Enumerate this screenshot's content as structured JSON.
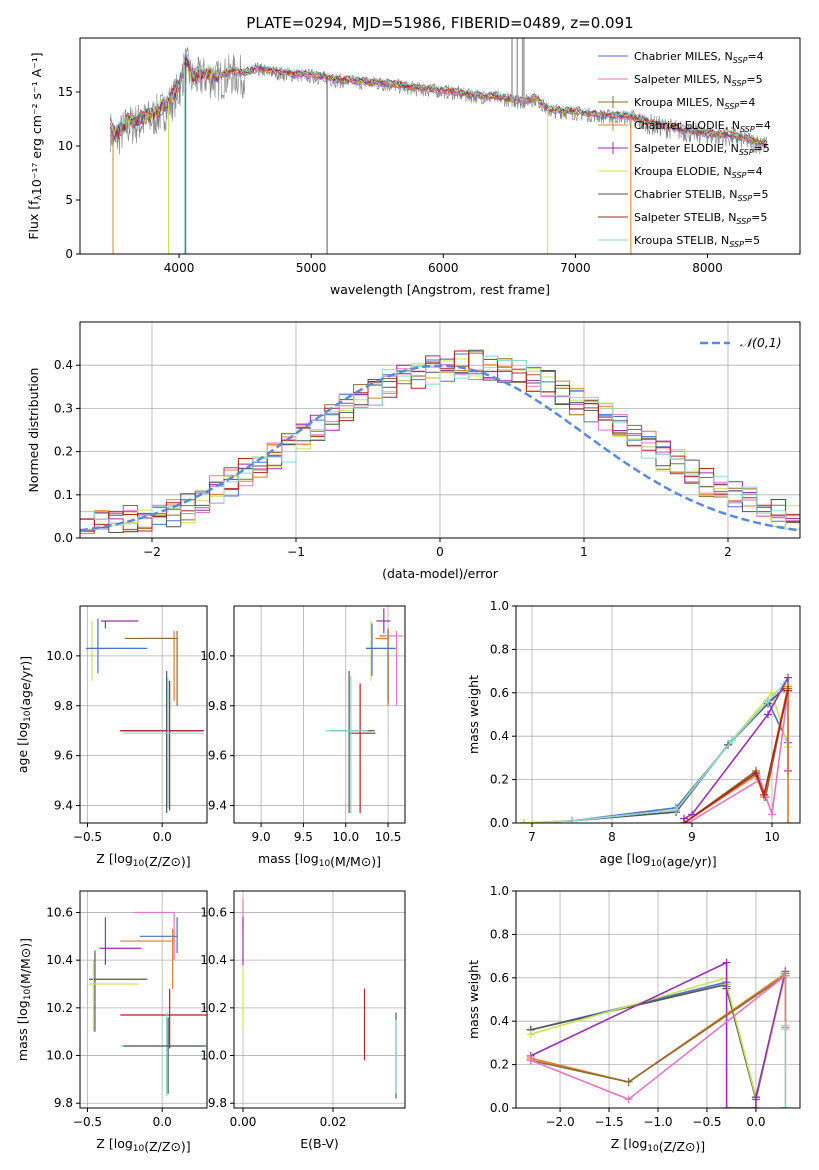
{
  "title": "PLATE=0294, MJD=51986, FIBERID=0489, z=0.091",
  "colors": {
    "series": [
      "#4c72c8",
      "#e377c2",
      "#8c6d31",
      "#dd7e2b",
      "#9a2fb3",
      "#c7e35a",
      "#555555",
      "#b22222",
      "#8fd3d6"
    ],
    "gauss": "#5a8bd6",
    "grid": "#b0b0b0"
  },
  "chart_data": [
    {
      "id": "spectrum",
      "type": "line",
      "xlabel": "wavelength [Angstrom, rest frame]",
      "ylabel": "Flux [fλ10⁻¹⁷ erg cm⁻² s⁻¹ A⁻¹]",
      "xlim": [
        3250,
        8700
      ],
      "ylim": [
        0,
        20
      ],
      "xticks": [
        4000,
        5000,
        6000,
        7000,
        8000
      ],
      "yticks": [
        0,
        5,
        10,
        15
      ],
      "grid": false,
      "legend_position": "top-right",
      "legend": [
        "Chabrier MILES, N_SSP=4",
        "Salpeter MILES, N_SSP=5",
        "Kroupa MILES, N_SSP=4",
        "Chabrier ELODIE, N_SSP=4",
        "Salpeter ELODIE, N_SSP=5",
        "Kroupa ELODIE, N_SSP=4",
        "Chabrier STELIB, N_SSP=5",
        "Salpeter STELIB, N_SSP=5",
        "Kroupa STELIB, N_SSP=5"
      ],
      "data_envelope": {
        "x": [
          3480,
          3520,
          3600,
          3700,
          3800,
          3900,
          4000,
          4050,
          4100,
          4200,
          4300,
          4400,
          4500,
          4600,
          4800,
          5000,
          5200,
          5400,
          5600,
          5800,
          6000,
          6200,
          6400,
          6600,
          6700,
          6800,
          7000,
          7200,
          7400,
          7600,
          7800,
          8000,
          8200,
          8450
        ],
        "y": [
          11.8,
          11.0,
          12.2,
          12.5,
          13.0,
          13.8,
          15.5,
          18.0,
          16.5,
          16.8,
          16.5,
          17.0,
          16.8,
          17.2,
          16.8,
          16.6,
          16.2,
          16.0,
          15.8,
          15.4,
          15.2,
          14.8,
          14.6,
          14.2,
          14.5,
          13.4,
          13.2,
          12.9,
          12.8,
          12.1,
          11.6,
          11.2,
          11.0,
          10.2
        ]
      },
      "model_dips": [
        {
          "x": 3500,
          "y": 0.0,
          "label": ""
        },
        {
          "x": 3920,
          "y": 0.0
        },
        {
          "x": 4040,
          "y": 0.0
        },
        {
          "x": 4040,
          "y": 3.5
        },
        {
          "x": 6790,
          "y": 0.0
        },
        {
          "x": 7420,
          "y": 0.0
        }
      ]
    },
    {
      "id": "residuals",
      "type": "histogram",
      "xlabel": "(data-model)/error",
      "ylabel": "Normed distribution",
      "xlim": [
        -2.5,
        2.5
      ],
      "ylim": [
        0,
        0.5
      ],
      "xticks": [
        -2,
        -1,
        0,
        1,
        2
      ],
      "yticks": [
        0.0,
        0.1,
        0.2,
        0.3,
        0.4
      ],
      "grid": true,
      "legend_position": "top-right",
      "legend": [
        "𝒩(0,1)"
      ],
      "bin_width": 0.1,
      "bins_start": -2.5,
      "profile": [
        0.03,
        0.035,
        0.04,
        0.045,
        0.05,
        0.055,
        0.06,
        0.07,
        0.09,
        0.11,
        0.13,
        0.15,
        0.17,
        0.19,
        0.21,
        0.235,
        0.26,
        0.28,
        0.3,
        0.32,
        0.34,
        0.355,
        0.37,
        0.38,
        0.39,
        0.395,
        0.4,
        0.4,
        0.395,
        0.39,
        0.38,
        0.37,
        0.355,
        0.34,
        0.32,
        0.3,
        0.28,
        0.26,
        0.24,
        0.215,
        0.19,
        0.17,
        0.15,
        0.13,
        0.115,
        0.1,
        0.085,
        0.07,
        0.06,
        0.05
      ]
    },
    {
      "id": "age-vs-Z",
      "type": "errorbar",
      "xlabel": "Z [log10(Z/Z⊙)]",
      "ylabel": "age  [log10(age/yr)]",
      "xlim": [
        -0.55,
        0.3
      ],
      "ylim": [
        9.33,
        10.2
      ],
      "xticks": [
        -0.5,
        0.0
      ],
      "yticks": [
        9.4,
        9.6,
        9.8,
        10.0
      ],
      "grid": true,
      "points": [
        {
          "x": 0.08,
          "y": 10.07,
          "xl": 0.22,
          "xr": 0.0,
          "yl": 0.25,
          "yh": 0.03,
          "c": 3
        },
        {
          "x": 0.1,
          "y": 10.07,
          "xl": 0.35,
          "xr": 0.0,
          "yl": 0.27,
          "yh": 0.03,
          "c": 2
        },
        {
          "x": -0.47,
          "y": 10.03,
          "xl": 0.04,
          "xr": 0.3,
          "yl": 0.13,
          "yh": 0.11,
          "c": 5
        },
        {
          "x": -0.43,
          "y": 10.03,
          "xl": 0.08,
          "xr": 0.33,
          "yl": 0.1,
          "yh": 0.12,
          "c": 0
        },
        {
          "x": -0.38,
          "y": 10.14,
          "xl": 0.03,
          "xr": 0.22,
          "yl": 0.03,
          "yh": 0.0,
          "c": 4
        },
        {
          "x": 0.03,
          "y": 9.7,
          "xl": 0.31,
          "xr": 0.25,
          "yl": 0.33,
          "yh": 0.24,
          "c": 6
        },
        {
          "x": 0.05,
          "y": 9.7,
          "xl": 0.33,
          "xr": 0.22,
          "yl": 0.32,
          "yh": 0.2,
          "c": 7
        },
        {
          "x": 0.04,
          "y": 9.69,
          "xl": 0.3,
          "xr": 0.24,
          "yl": 0.3,
          "yh": 0.22,
          "c": 8
        }
      ]
    },
    {
      "id": "age-vs-mass",
      "type": "errorbar",
      "xlabel": "mass [log10(M/M⊙)]",
      "ylabel": "",
      "xlim": [
        8.68,
        10.7
      ],
      "ylim": [
        9.33,
        10.2
      ],
      "xticks": [
        9.0,
        9.5,
        10.0,
        10.5
      ],
      "yticks": [
        9.4,
        9.6,
        9.8,
        10.0
      ],
      "grid": true,
      "points": [
        {
          "x": 10.5,
          "y": 10.07,
          "xl": 0.15,
          "xr": 0.0,
          "yl": 0.27,
          "yh": 0.03,
          "c": 3
        },
        {
          "x": 10.5,
          "y": 10.08,
          "xl": 0.1,
          "xr": 0.1,
          "yl": 0.27,
          "yh": 0.03,
          "c": 2
        },
        {
          "x": 10.6,
          "y": 10.08,
          "xl": 0.14,
          "xr": 0.08,
          "yl": 0.28,
          "yh": 0.02,
          "c": 1
        },
        {
          "x": 10.3,
          "y": 10.03,
          "xl": 0.06,
          "xr": 0.3,
          "yl": 0.13,
          "yh": 0.11,
          "c": 5
        },
        {
          "x": 10.31,
          "y": 10.03,
          "xl": 0.07,
          "xr": 0.28,
          "yl": 0.11,
          "yh": 0.1,
          "c": 0
        },
        {
          "x": 10.45,
          "y": 10.14,
          "xl": 0.09,
          "xr": 0.08,
          "yl": 0.05,
          "yh": 0.05,
          "c": 4
        },
        {
          "x": 10.04,
          "y": 9.7,
          "xl": 0.22,
          "xr": 0.3,
          "yl": 0.33,
          "yh": 0.24,
          "c": 6
        },
        {
          "x": 10.17,
          "y": 9.69,
          "xl": 0.13,
          "xr": 0.18,
          "yl": 0.32,
          "yh": 0.2,
          "c": 7
        },
        {
          "x": 10.06,
          "y": 9.7,
          "xl": 0.3,
          "xr": 0.2,
          "yl": 0.33,
          "yh": 0.22,
          "c": 8
        }
      ]
    },
    {
      "id": "weight-vs-age",
      "type": "line",
      "xlabel": "age  [log10(age/yr)]",
      "ylabel": "mass weight",
      "xlim": [
        6.8,
        10.35
      ],
      "ylim": [
        0,
        1
      ],
      "xticks": [
        7,
        8,
        9,
        10
      ],
      "yticks": [
        0.0,
        0.2,
        0.4,
        0.6,
        0.8,
        1.0
      ],
      "grid": true,
      "series": [
        {
          "c": 0,
          "x": [
            6.9,
            7.5,
            8.8,
            9.5,
            9.95,
            10.2
          ],
          "y": [
            0.0,
            0.01,
            0.07,
            0.38,
            0.56,
            0.37
          ]
        },
        {
          "c": 5,
          "x": [
            6.9,
            7.5,
            8.8,
            9.45,
            10.0,
            10.2
          ],
          "y": [
            0.0,
            0.01,
            0.06,
            0.36,
            0.6,
            0.35
          ]
        },
        {
          "c": 6,
          "x": [
            7.5,
            8.8,
            9.45,
            9.95,
            10.15
          ],
          "y": [
            0.01,
            0.05,
            0.36,
            0.55,
            0.62
          ]
        },
        {
          "c": 8,
          "x": [
            7.5,
            8.8,
            9.5,
            9.95,
            10.15
          ],
          "y": [
            0.01,
            0.06,
            0.38,
            0.56,
            0.64
          ]
        },
        {
          "c": 4,
          "x": [
            8.9,
            9.0,
            9.95,
            10.2,
            10.2
          ],
          "y": [
            0.02,
            0.04,
            0.5,
            0.67,
            0.24
          ]
        },
        {
          "c": 3,
          "x": [
            8.9,
            9.8,
            9.9,
            10.2,
            10.2
          ],
          "y": [
            0.0,
            0.22,
            0.12,
            0.63,
            0.0
          ]
        },
        {
          "c": 2,
          "x": [
            8.9,
            9.8,
            9.92,
            10.2
          ],
          "y": [
            0.0,
            0.24,
            0.12,
            0.62
          ]
        },
        {
          "c": 1,
          "x": [
            8.95,
            9.85,
            10.0,
            10.2
          ],
          "y": [
            0.0,
            0.2,
            0.04,
            0.61
          ]
        },
        {
          "c": 7,
          "x": [
            8.9,
            9.8,
            9.9,
            10.2
          ],
          "y": [
            0.0,
            0.23,
            0.13,
            0.61
          ]
        }
      ]
    },
    {
      "id": "mass-vs-Z",
      "type": "errorbar",
      "xlabel": "Z [log10(Z/Z⊙)]",
      "ylabel": "mass [log10(M/M⊙)]",
      "xlim": [
        -0.55,
        0.3
      ],
      "ylim": [
        9.78,
        10.69
      ],
      "xticks": [
        -0.5,
        0.0
      ],
      "yticks": [
        9.8,
        10.0,
        10.2,
        10.4,
        10.6
      ],
      "grid": true,
      "points": [
        {
          "x": 0.08,
          "y": 10.6,
          "xl": 0.27,
          "xr": 0.0,
          "yl": 0.2,
          "yh": 0.0,
          "c": 1
        },
        {
          "x": 0.1,
          "y": 10.5,
          "xl": 0.25,
          "xr": 0.0,
          "yl": 0.07,
          "yh": 0.08,
          "c": 0
        },
        {
          "x": 0.07,
          "y": 10.48,
          "xl": 0.35,
          "xr": 0.0,
          "yl": 0.2,
          "yh": 0.05,
          "c": 3
        },
        {
          "x": -0.38,
          "y": 10.45,
          "xl": 0.04,
          "xr": 0.24,
          "yl": 0.07,
          "yh": 0.13,
          "c": 4
        },
        {
          "x": -0.45,
          "y": 10.32,
          "xl": 0.04,
          "xr": 0.35,
          "yl": 0.22,
          "yh": 0.12,
          "c": 6
        },
        {
          "x": -0.46,
          "y": 10.3,
          "xl": 0.03,
          "xr": 0.3,
          "yl": 0.2,
          "yh": 0.1,
          "c": 5
        },
        {
          "x": 0.05,
          "y": 10.17,
          "xl": 0.33,
          "xr": 0.25,
          "yl": 0.14,
          "yh": 0.11,
          "c": 7
        },
        {
          "x": 0.03,
          "y": 10.04,
          "xl": 0.31,
          "xr": 0.27,
          "yl": 0.21,
          "yh": 0.14,
          "c": 8
        },
        {
          "x": 0.04,
          "y": 10.04,
          "xl": 0.3,
          "xr": 0.25,
          "yl": 0.2,
          "yh": 0.12,
          "c": 6
        }
      ]
    },
    {
      "id": "mass-vs-EBV",
      "type": "errorbar",
      "xlabel": "E(B-V)",
      "ylabel": "",
      "xlim": [
        -0.002,
        0.036
      ],
      "ylim": [
        9.78,
        10.69
      ],
      "xticks": [
        0.0,
        0.02
      ],
      "yticks": [
        9.8,
        10.0,
        10.2,
        10.4,
        10.6
      ],
      "grid": true,
      "points": [
        {
          "x": 0.0,
          "y": 10.58,
          "xl": 0,
          "xr": 0,
          "yl": 0.05,
          "yh": 0.08,
          "c": 1
        },
        {
          "x": 0.0,
          "y": 10.48,
          "xl": 0,
          "xr": 0,
          "yl": 0.1,
          "yh": 0.1,
          "c": 4
        },
        {
          "x": 0.0,
          "y": 10.26,
          "xl": 0,
          "xr": 0,
          "yl": 0.15,
          "yh": 0.1,
          "c": 5
        },
        {
          "x": 0.027,
          "y": 10.13,
          "xl": 0,
          "xr": 0,
          "yl": 0.15,
          "yh": 0.15,
          "c": 7
        },
        {
          "x": 0.034,
          "y": 10.01,
          "xl": 0,
          "xr": 0,
          "yl": 0.19,
          "yh": 0.17,
          "c": 6
        },
        {
          "x": 0.034,
          "y": 10.0,
          "xl": 0,
          "xr": 0,
          "yl": 0.16,
          "yh": 0.15,
          "c": 8
        }
      ]
    },
    {
      "id": "weight-vs-Z",
      "type": "line",
      "xlabel": "Z [log10(Z/Z⊙)]",
      "ylabel": "mass weight",
      "xlim": [
        -2.45,
        0.45
      ],
      "ylim": [
        0,
        1
      ],
      "xticks": [
        -2.0,
        -1.5,
        -1.0,
        -0.5,
        0.0
      ],
      "yticks": [
        0.0,
        0.2,
        0.4,
        0.6,
        0.8,
        1.0
      ],
      "grid": true,
      "series": [
        {
          "c": 0,
          "x": [
            -2.3,
            -0.3,
            -0.3,
            0.0,
            0.3,
            0.3
          ],
          "y": [
            0.36,
            0.58,
            0.56,
            0.05,
            0.62,
            0.37
          ]
        },
        {
          "c": 6,
          "x": [
            -2.3,
            -0.3,
            -0.3,
            0.0,
            0.3,
            0.3
          ],
          "y": [
            0.36,
            0.57,
            0.55,
            0.04,
            0.62,
            0.38
          ]
        },
        {
          "c": 5,
          "x": [
            -2.3,
            -0.3,
            -0.3,
            0.0,
            0.3,
            0.3
          ],
          "y": [
            0.34,
            0.6,
            0.57,
            0.05,
            0.61,
            0.36
          ]
        },
        {
          "c": 4,
          "x": [
            -2.3,
            -0.3,
            -0.3,
            0.0,
            0.0,
            0.3
          ],
          "y": [
            0.24,
            0.67,
            0.0,
            0.0,
            0.05,
            0.63
          ]
        },
        {
          "c": 3,
          "x": [
            -2.3,
            -1.3,
            0.3,
            0.3
          ],
          "y": [
            0.23,
            0.12,
            0.62,
            0.0
          ]
        },
        {
          "c": 2,
          "x": [
            -2.3,
            -1.3,
            0.3,
            0.3
          ],
          "y": [
            0.22,
            0.12,
            0.61,
            0.0
          ]
        },
        {
          "c": 1,
          "x": [
            -2.3,
            -1.3,
            0.3,
            0.3
          ],
          "y": [
            0.22,
            0.04,
            0.61,
            0.37
          ]
        },
        {
          "c": 8,
          "x": [
            0.3,
            0.3
          ],
          "y": [
            0.38,
            0.0
          ]
        }
      ]
    }
  ]
}
